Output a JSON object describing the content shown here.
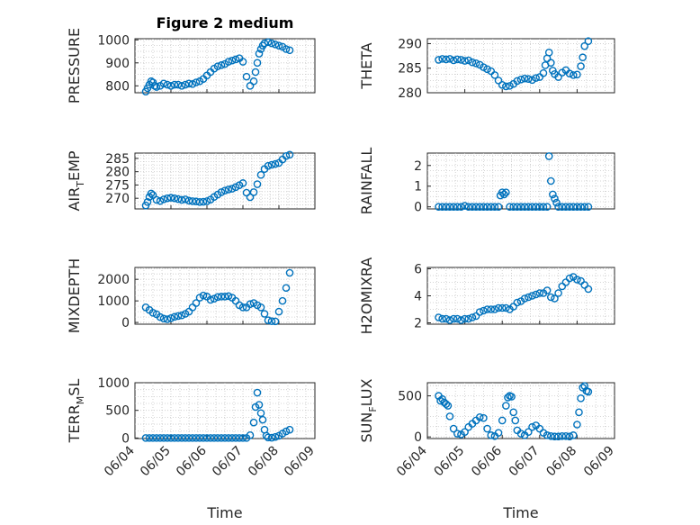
{
  "figure": {
    "title": "Figure 2 medium"
  },
  "chart_data": [
    {
      "type": "scatter",
      "title": "Figure 2 medium",
      "ylabel_main": "PRESSURE",
      "ylabel_sub": "",
      "xlabel": "",
      "ylim": [
        770,
        1005
      ],
      "yticks": [
        "1000",
        "900",
        "800"
      ],
      "ytick_values": [
        1000,
        900,
        800
      ],
      "grid": true,
      "color": "#0072BD",
      "x": [
        4.3,
        4.35,
        4.4,
        4.45,
        4.5,
        4.55,
        4.6,
        4.7,
        4.8,
        4.9,
        5.0,
        5.1,
        5.2,
        5.3,
        5.4,
        5.5,
        5.6,
        5.7,
        5.8,
        5.9,
        6.0,
        6.1,
        6.2,
        6.3,
        6.4,
        6.5,
        6.6,
        6.7,
        6.8,
        6.9,
        7.0,
        7.1,
        7.2,
        7.3,
        7.35,
        7.4,
        7.45,
        7.5,
        7.55,
        7.6,
        7.7,
        7.8,
        7.9,
        8.0,
        8.1,
        8.2,
        8.3
      ],
      "y": [
        775,
        790,
        805,
        820,
        815,
        800,
        795,
        800,
        810,
        805,
        800,
        805,
        805,
        800,
        805,
        810,
        808,
        815,
        820,
        830,
        845,
        860,
        875,
        885,
        890,
        895,
        905,
        910,
        915,
        920,
        905,
        840,
        800,
        820,
        860,
        900,
        940,
        960,
        975,
        985,
        990,
        985,
        980,
        975,
        970,
        960,
        955
      ]
    },
    {
      "type": "scatter",
      "title": "",
      "ylabel_main": "THETA",
      "ylabel_sub": "",
      "xlabel": "",
      "ylim": [
        280,
        291
      ],
      "yticks": [
        "290",
        "285",
        "280"
      ],
      "ytick_values": [
        290,
        285,
        280
      ],
      "grid": true,
      "color": "#0072BD",
      "x": [
        4.3,
        4.4,
        4.5,
        4.6,
        4.7,
        4.8,
        4.9,
        5.0,
        5.1,
        5.2,
        5.3,
        5.4,
        5.5,
        5.6,
        5.7,
        5.8,
        5.9,
        6.0,
        6.1,
        6.2,
        6.3,
        6.4,
        6.5,
        6.6,
        6.7,
        6.8,
        6.9,
        7.0,
        7.1,
        7.15,
        7.2,
        7.25,
        7.3,
        7.35,
        7.4,
        7.5,
        7.6,
        7.7,
        7.8,
        7.9,
        8.0,
        8.1,
        8.15,
        8.2,
        8.3
      ],
      "y": [
        286.7,
        286.9,
        286.8,
        286.9,
        286.6,
        286.8,
        286.7,
        286.5,
        286.6,
        286.2,
        286.0,
        285.7,
        285.2,
        284.8,
        284.4,
        283.6,
        282.5,
        281.6,
        281.3,
        281.4,
        281.8,
        282.4,
        282.7,
        282.9,
        282.8,
        282.6,
        283.0,
        283.2,
        284.0,
        285.6,
        287.0,
        288.2,
        286.1,
        284.5,
        283.8,
        283.2,
        284.1,
        284.6,
        283.9,
        283.6,
        283.7,
        285.4,
        287.2,
        289.5,
        290.5
      ]
    },
    {
      "type": "scatter",
      "title": "",
      "ylabel_main": "AIR",
      "ylabel_sub": "T",
      "ylabel_tail": "EMP",
      "xlabel": "",
      "ylim": [
        266,
        287
      ],
      "yticks": [
        "285",
        "280",
        "275",
        "270"
      ],
      "ytick_values": [
        285,
        280,
        275,
        270
      ],
      "grid": true,
      "color": "#0072BD",
      "x": [
        4.3,
        4.35,
        4.4,
        4.45,
        4.5,
        4.6,
        4.7,
        4.8,
        4.9,
        5.0,
        5.1,
        5.2,
        5.3,
        5.4,
        5.5,
        5.6,
        5.7,
        5.8,
        5.9,
        6.0,
        6.1,
        6.2,
        6.3,
        6.4,
        6.5,
        6.6,
        6.7,
        6.8,
        6.9,
        7.0,
        7.1,
        7.2,
        7.3,
        7.4,
        7.5,
        7.6,
        7.7,
        7.8,
        7.9,
        8.0,
        8.1,
        8.2,
        8.3
      ],
      "y": [
        267.3,
        268.6,
        270.5,
        271.8,
        271.2,
        269.4,
        269.0,
        269.6,
        270.0,
        270.2,
        270.0,
        269.7,
        269.4,
        269.6,
        269.1,
        268.9,
        268.8,
        268.6,
        268.7,
        268.9,
        269.5,
        270.5,
        271.4,
        272.3,
        272.9,
        273.3,
        273.6,
        274.2,
        274.9,
        275.7,
        272.1,
        270.4,
        272.3,
        275.3,
        278.8,
        281.0,
        282.2,
        282.6,
        282.9,
        283.3,
        284.6,
        285.9,
        286.4
      ]
    },
    {
      "type": "scatter",
      "title": "",
      "ylabel_main": "RAINFALL",
      "ylabel_sub": "",
      "xlabel": "",
      "ylim": [
        -0.1,
        2.6
      ],
      "yticks": [
        "2",
        "1",
        "0"
      ],
      "ytick_values": [
        2,
        1,
        0
      ],
      "grid": true,
      "color": "#0072BD",
      "x": [
        4.3,
        4.4,
        4.5,
        4.6,
        4.7,
        4.8,
        4.9,
        5.0,
        5.1,
        5.2,
        5.3,
        5.4,
        5.5,
        5.6,
        5.7,
        5.8,
        5.9,
        5.95,
        6.0,
        6.05,
        6.1,
        6.2,
        6.3,
        6.4,
        6.5,
        6.6,
        6.7,
        6.8,
        6.9,
        7.0,
        7.1,
        7.2,
        7.25,
        7.3,
        7.35,
        7.4,
        7.45,
        7.5,
        7.6,
        7.7,
        7.8,
        7.9,
        8.0,
        8.1,
        8.2,
        8.3
      ],
      "y": [
        0,
        0,
        0,
        0,
        0,
        0,
        0,
        0.05,
        0,
        0,
        0,
        0,
        0,
        0,
        0,
        0,
        0,
        0.55,
        0.7,
        0.6,
        0.7,
        0,
        0,
        0,
        0,
        0,
        0,
        0,
        0,
        0,
        0,
        0,
        2.45,
        1.25,
        0.6,
        0.4,
        0.2,
        0,
        0,
        0,
        0,
        0,
        0,
        0,
        0,
        0
      ]
    },
    {
      "type": "scatter",
      "title": "",
      "ylabel_main": "MIXDEPTH",
      "ylabel_sub": "",
      "xlabel": "",
      "ylim": [
        -80,
        2550
      ],
      "yticks": [
        "2000",
        "1000",
        "0"
      ],
      "ytick_values": [
        2000,
        1000,
        0
      ],
      "grid": true,
      "color": "#0072BD",
      "x": [
        4.3,
        4.4,
        4.5,
        4.6,
        4.7,
        4.8,
        4.9,
        5.0,
        5.1,
        5.2,
        5.3,
        5.4,
        5.5,
        5.6,
        5.7,
        5.8,
        5.9,
        6.0,
        6.1,
        6.2,
        6.3,
        6.4,
        6.5,
        6.6,
        6.7,
        6.8,
        6.9,
        7.0,
        7.1,
        7.2,
        7.3,
        7.4,
        7.5,
        7.6,
        7.7,
        7.8,
        7.9,
        8.0,
        8.1,
        8.2,
        8.3
      ],
      "y": [
        700,
        580,
        450,
        380,
        250,
        180,
        150,
        200,
        260,
        300,
        330,
        400,
        500,
        700,
        900,
        1150,
        1250,
        1200,
        1050,
        1100,
        1180,
        1200,
        1200,
        1220,
        1150,
        1000,
        800,
        700,
        700,
        850,
        900,
        800,
        700,
        400,
        100,
        60,
        50,
        500,
        1000,
        1600,
        2300
      ]
    },
    {
      "type": "scatter",
      "title": "",
      "ylabel_main": "H2OMIXRA",
      "ylabel_sub": "",
      "xlabel": "",
      "ylim": [
        1.9,
        6.1
      ],
      "yticks": [
        "6",
        "4",
        "2"
      ],
      "ytick_values": [
        6,
        4,
        2
      ],
      "grid": true,
      "color": "#0072BD",
      "x": [
        4.3,
        4.4,
        4.5,
        4.6,
        4.7,
        4.8,
        4.9,
        5.0,
        5.1,
        5.2,
        5.3,
        5.4,
        5.5,
        5.6,
        5.7,
        5.8,
        5.9,
        6.0,
        6.1,
        6.2,
        6.3,
        6.4,
        6.5,
        6.6,
        6.7,
        6.8,
        6.9,
        7.0,
        7.1,
        7.2,
        7.3,
        7.4,
        7.5,
        7.6,
        7.7,
        7.8,
        7.9,
        8.0,
        8.1,
        8.2,
        8.3
      ],
      "y": [
        2.4,
        2.3,
        2.3,
        2.2,
        2.3,
        2.3,
        2.2,
        2.3,
        2.3,
        2.4,
        2.5,
        2.8,
        2.9,
        3.0,
        3.0,
        3.0,
        3.1,
        3.1,
        3.1,
        3.0,
        3.2,
        3.5,
        3.6,
        3.8,
        3.9,
        4.0,
        4.1,
        4.2,
        4.2,
        4.4,
        3.9,
        3.8,
        4.2,
        4.7,
        5.0,
        5.3,
        5.4,
        5.2,
        5.1,
        4.8,
        4.5
      ]
    },
    {
      "type": "scatter",
      "title": "",
      "ylabel_main": "TERR",
      "ylabel_sub": "M",
      "ylabel_tail": "SL",
      "xlabel": "Time",
      "ylim": [
        -10,
        1000
      ],
      "yticks": [
        "1000",
        "500",
        "0"
      ],
      "ytick_values": [
        1000,
        500,
        0
      ],
      "xticks": [
        "06/04",
        "06/05",
        "06/06",
        "06/07",
        "06/08",
        "06/09"
      ],
      "grid": true,
      "color": "#0072BD",
      "x": [
        4.3,
        4.4,
        4.5,
        4.6,
        4.7,
        4.8,
        4.9,
        5.0,
        5.1,
        5.2,
        5.3,
        5.4,
        5.5,
        5.6,
        5.7,
        5.8,
        5.9,
        6.0,
        6.1,
        6.2,
        6.3,
        6.4,
        6.5,
        6.6,
        6.7,
        6.8,
        6.9,
        7.0,
        7.1,
        7.2,
        7.3,
        7.35,
        7.4,
        7.45,
        7.5,
        7.55,
        7.6,
        7.65,
        7.7,
        7.8,
        7.9,
        8.0,
        8.1,
        8.2,
        8.3
      ],
      "y": [
        0,
        0,
        0,
        0,
        0,
        0,
        0,
        0,
        0,
        0,
        0,
        0,
        0,
        0,
        0,
        0,
        0,
        0,
        0,
        0,
        0,
        0,
        0,
        0,
        0,
        0,
        0,
        0,
        0,
        50,
        280,
        560,
        820,
        600,
        450,
        330,
        150,
        40,
        10,
        5,
        20,
        40,
        80,
        120,
        150
      ]
    },
    {
      "type": "scatter",
      "title": "",
      "ylabel_main": "SUN",
      "ylabel_sub": "F",
      "ylabel_tail": "LUX",
      "xlabel": "Time",
      "ylim": [
        -20,
        660
      ],
      "yticks": [
        "500",
        "0"
      ],
      "ytick_values": [
        500,
        0
      ],
      "xticks": [
        "06/04",
        "06/05",
        "06/06",
        "06/07",
        "06/08",
        "06/09"
      ],
      "grid": true,
      "color": "#0072BD",
      "x": [
        4.3,
        4.35,
        4.4,
        4.45,
        4.5,
        4.55,
        4.6,
        4.7,
        4.8,
        4.9,
        5.0,
        5.1,
        5.2,
        5.3,
        5.4,
        5.5,
        5.6,
        5.7,
        5.8,
        5.9,
        6.0,
        6.1,
        6.15,
        6.2,
        6.25,
        6.3,
        6.35,
        6.4,
        6.5,
        6.6,
        6.7,
        6.8,
        6.9,
        7.0,
        7.1,
        7.2,
        7.3,
        7.4,
        7.5,
        7.6,
        7.7,
        7.8,
        7.9,
        8.0,
        8.05,
        8.1,
        8.15,
        8.2,
        8.25,
        8.3
      ],
      "y": [
        500,
        440,
        460,
        420,
        400,
        380,
        250,
        100,
        40,
        30,
        60,
        120,
        160,
        200,
        240,
        230,
        100,
        20,
        10,
        50,
        200,
        380,
        480,
        500,
        490,
        300,
        200,
        80,
        40,
        20,
        60,
        120,
        140,
        100,
        50,
        20,
        10,
        5,
        5,
        10,
        10,
        5,
        20,
        150,
        300,
        470,
        600,
        620,
        560,
        550
      ]
    }
  ]
}
